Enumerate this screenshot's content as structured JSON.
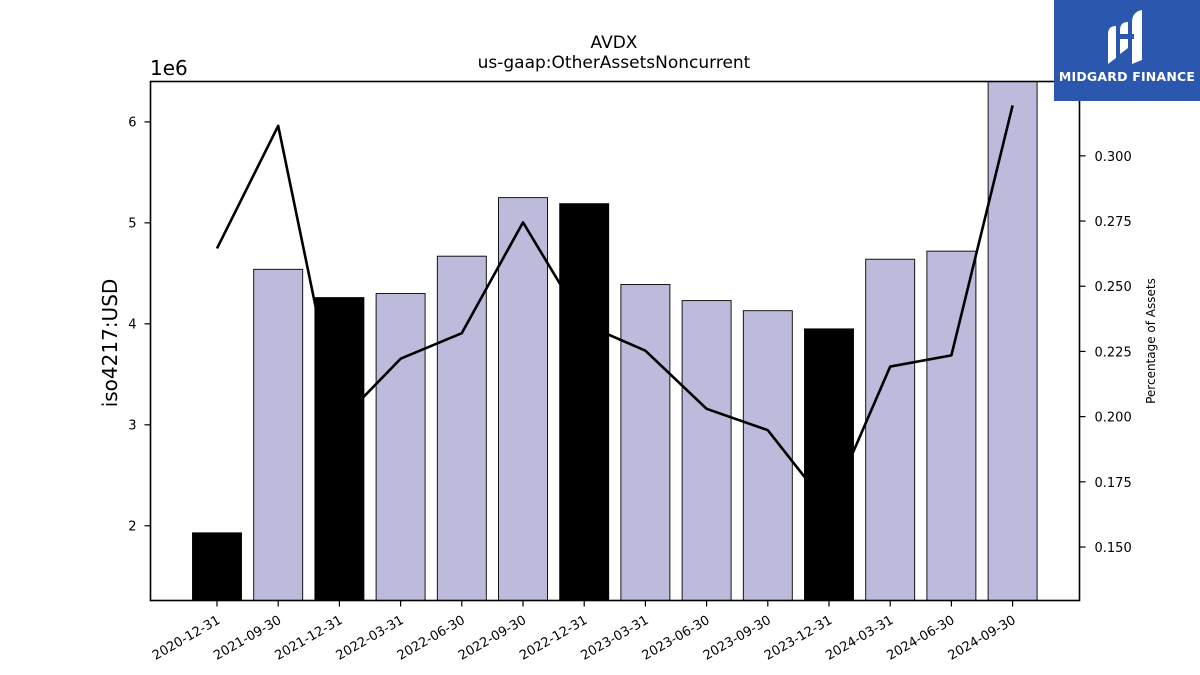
{
  "chart_data": {
    "type": "bar+line",
    "title": "AVDX",
    "subtitle": "us-gaap:OtherAssetsNoncurrent",
    "ylabel": "iso4217:USD",
    "y_offset_label": "1e6",
    "y2label": "Percentage of Assets",
    "categories": [
      "2020-12-31",
      "2021-09-30",
      "2021-12-31",
      "2022-03-31",
      "2022-06-30",
      "2022-09-30",
      "2022-12-31",
      "2023-03-31",
      "2023-06-30",
      "2023-09-30",
      "2023-12-31",
      "2024-03-31",
      "2024-06-30",
      "2024-09-30"
    ],
    "bar_values": [
      1930000,
      4540000,
      4260000,
      4300000,
      4670000,
      5250000,
      5190000,
      4390000,
      4230000,
      4130000,
      3950000,
      4640000,
      4720000,
      6410000
    ],
    "bar_highlight": [
      true,
      false,
      true,
      false,
      false,
      false,
      true,
      false,
      false,
      false,
      true,
      false,
      false,
      false
    ],
    "line_values": [
      0.2645,
      0.3115,
      0.198,
      0.2222,
      0.232,
      0.2745,
      0.2355,
      0.2253,
      0.203,
      0.1948,
      0.165,
      0.2192,
      0.2235,
      0.3193
    ],
    "ylim": [
      1260000,
      6400000
    ],
    "y2lim": [
      0.1295,
      0.3285
    ],
    "y_ticks": [
      2,
      3,
      4,
      5,
      6
    ],
    "y2_ticks": [
      "0.150",
      "0.175",
      "0.200",
      "0.225",
      "0.250",
      "0.275",
      "0.300"
    ],
    "colors": {
      "bar": "#bdbbdb",
      "bar_highlight": "#000000",
      "line": "#000000"
    }
  },
  "logo": {
    "text": "MIDGARD FINANCE",
    "color": "#2b58ae"
  }
}
